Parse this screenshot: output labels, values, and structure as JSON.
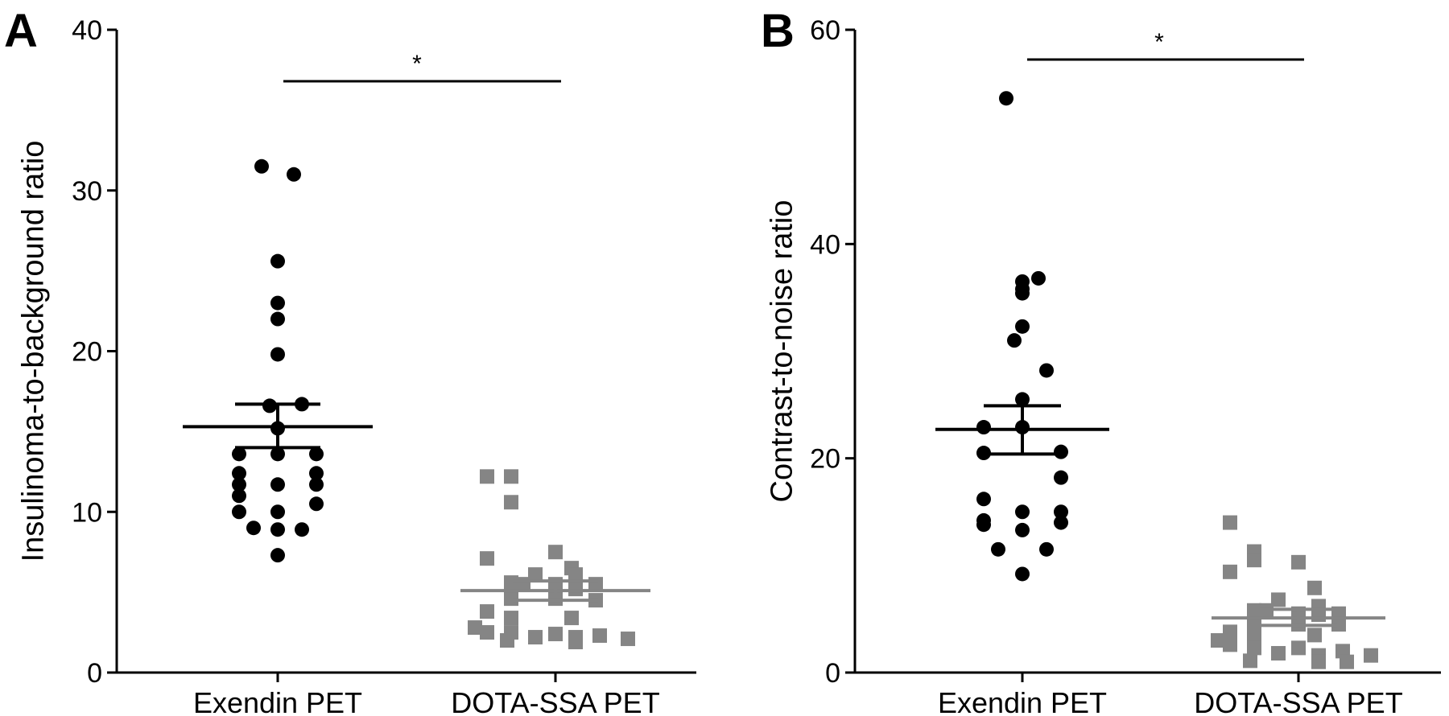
{
  "chart_data": [
    {
      "panel_label": "A",
      "type": "scatter",
      "ylabel": "Insulinoma-to-background ratio",
      "ylim": [
        0,
        40
      ],
      "yticks": [
        0,
        10,
        20,
        30,
        40
      ],
      "categories": [
        "Exendin PET",
        "DOTA-SSA PET"
      ],
      "significance": "*",
      "groups": [
        {
          "category": "Exendin PET",
          "marker": "circle",
          "color": "#000000",
          "mean": 15.3,
          "sem_low": 14.0,
          "sem_high": 16.7,
          "points": [
            31.5,
            31.0,
            25.6,
            23.0,
            22.0,
            19.8,
            16.6,
            16.7,
            15.2,
            13.6,
            13.6,
            13.6,
            12.4,
            12.4,
            11.7,
            11.7,
            11.7,
            11.0,
            10.5,
            10.0,
            10.0,
            9.0,
            8.9,
            8.9,
            7.3
          ]
        },
        {
          "category": "DOTA-SSA PET",
          "marker": "square",
          "color": "#858585",
          "mean": 5.1,
          "sem_low": 4.5,
          "sem_high": 5.7,
          "points": [
            12.2,
            12.2,
            10.6,
            7.5,
            7.1,
            6.5,
            6.1,
            6.1,
            5.6,
            5.5,
            5.5,
            5.5,
            5.2,
            5.0,
            4.6,
            4.6,
            4.5,
            3.8,
            3.4,
            3.4,
            2.8,
            2.5,
            2.5,
            2.4,
            2.3,
            2.2,
            2.2,
            2.1,
            2.0,
            1.9
          ]
        }
      ]
    },
    {
      "panel_label": "B",
      "type": "scatter",
      "ylabel": "Contrast-to-noise ratio",
      "ylim": [
        0,
        60
      ],
      "yticks": [
        0,
        20,
        40,
        60
      ],
      "categories": [
        "Exendin PET",
        "DOTA-SSA PET"
      ],
      "significance": "*",
      "groups": [
        {
          "category": "Exendin PET",
          "marker": "circle",
          "color": "#000000",
          "mean": 22.7,
          "sem_low": 20.4,
          "sem_high": 24.9,
          "points": [
            53.6,
            36.8,
            36.5,
            35.8,
            35.4,
            32.3,
            31.0,
            28.2,
            25.5,
            22.9,
            22.9,
            20.6,
            20.5,
            18.2,
            16.2,
            15.0,
            15.0,
            14.2,
            14.0,
            13.8,
            13.3,
            11.5,
            11.5,
            9.2
          ]
        },
        {
          "category": "DOTA-SSA PET",
          "marker": "square",
          "color": "#858585",
          "mean": 5.1,
          "sem_low": 4.4,
          "sem_high": 5.9,
          "points": [
            14.0,
            11.3,
            10.5,
            10.3,
            9.4,
            7.9,
            6.8,
            6.2,
            5.8,
            5.8,
            5.5,
            5.5,
            5.4,
            5.0,
            4.8,
            4.5,
            4.5,
            3.8,
            3.5,
            3.5,
            3.0,
            2.6,
            2.3,
            2.3,
            2.0,
            1.8,
            1.6,
            1.6,
            1.1,
            1.0,
            1.0
          ]
        }
      ]
    }
  ]
}
